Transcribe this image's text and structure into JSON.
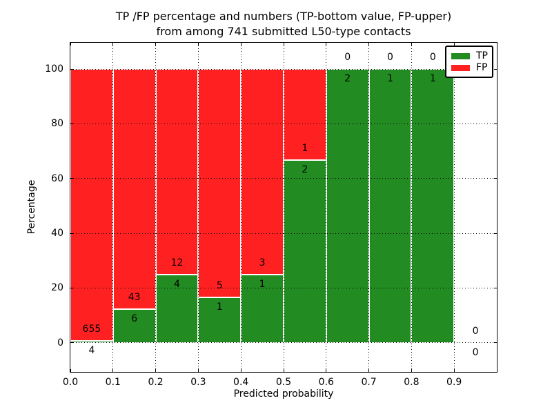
{
  "figure": {
    "title_line1": "TP /FP percentage and numbers (TP-bottom value, FP-upper)",
    "title_line2": "from among 741 submitted L50-type contacts",
    "xlabel": "Predicted probability",
    "ylabel": "Percentage"
  },
  "legend": {
    "position": "upper-right",
    "items": [
      {
        "label": "TP",
        "color": "#228b22"
      },
      {
        "label": "FP",
        "color": "#ff2121"
      }
    ]
  },
  "chart_data": {
    "type": "bar",
    "stacked": true,
    "normalized_to_percent": true,
    "title": "TP /FP percentage and numbers (TP-bottom value, FP-upper) from among 741 submitted L50-type contacts",
    "xlabel": "Predicted probability",
    "ylabel": "Percentage",
    "total_contacts": 741,
    "x_bins": [
      [
        0.0,
        0.1
      ],
      [
        0.1,
        0.2
      ],
      [
        0.2,
        0.3
      ],
      [
        0.3,
        0.4
      ],
      [
        0.4,
        0.5
      ],
      [
        0.5,
        0.6
      ],
      [
        0.6,
        0.7
      ],
      [
        0.7,
        0.8
      ],
      [
        0.8,
        0.9
      ],
      [
        0.9,
        1.0
      ]
    ],
    "series": [
      {
        "name": "TP",
        "color": "#228b22",
        "counts": [
          4,
          6,
          4,
          1,
          1,
          2,
          2,
          1,
          1,
          0
        ]
      },
      {
        "name": "FP",
        "color": "#ff2121",
        "counts": [
          655,
          43,
          12,
          5,
          3,
          1,
          0,
          0,
          0,
          0
        ]
      }
    ],
    "tp_percent": [
      0.61,
      12.24,
      25.0,
      16.67,
      25.0,
      66.67,
      100.0,
      100.0,
      100.0,
      null
    ],
    "xlim": [
      0.0,
      1.0
    ],
    "ylim": [
      -10.7,
      109.6
    ],
    "x_ticks": [
      "0.0",
      "0.1",
      "0.2",
      "0.3",
      "0.4",
      "0.5",
      "0.6",
      "0.7",
      "0.8",
      "0.9"
    ],
    "x_tick_values": [
      0.0,
      0.1,
      0.2,
      0.3,
      0.4,
      0.5,
      0.6,
      0.7,
      0.8,
      0.9
    ],
    "y_ticks": [
      "0",
      "20",
      "40",
      "60",
      "80",
      "100"
    ],
    "y_tick_values": [
      0,
      20,
      40,
      60,
      80,
      100
    ],
    "grid": "dotted"
  }
}
